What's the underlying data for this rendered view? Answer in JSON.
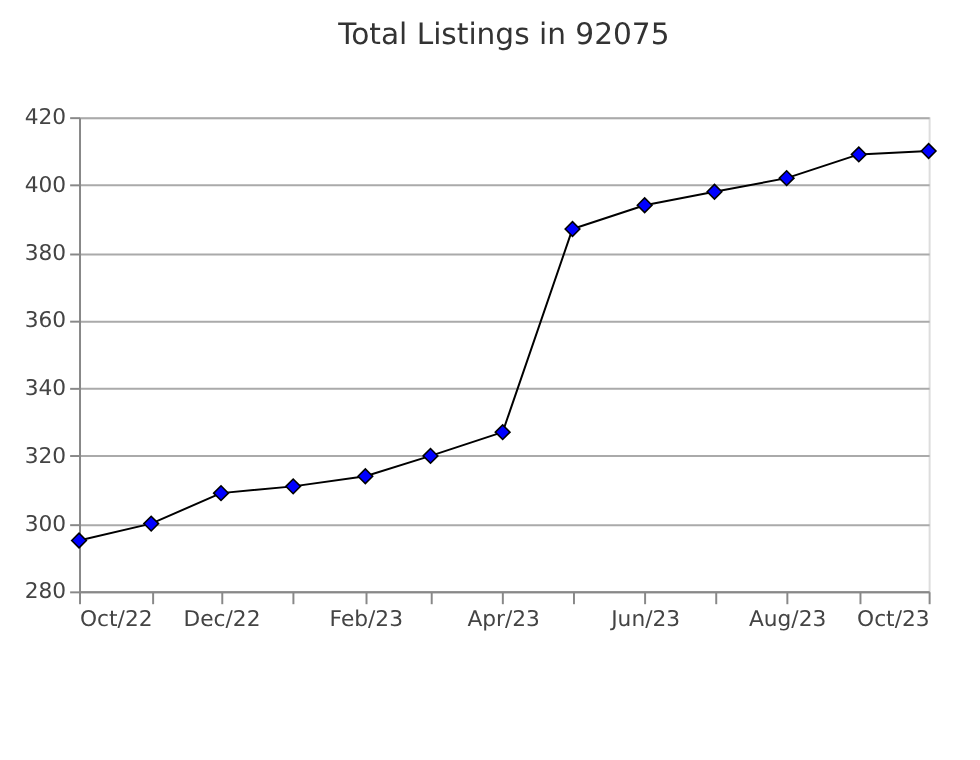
{
  "chart_data": {
    "type": "line",
    "title": "Total Listings in 92075",
    "x": [
      "2022-10",
      "2022-11",
      "2022-12",
      "2023-01",
      "2023-02",
      "2023-03",
      "2023-04",
      "2023-05",
      "2023-06",
      "2023-07",
      "2023-08",
      "2023-09",
      "2023-10"
    ],
    "series": [
      {
        "color": "#0000ff",
        "values": [
          295,
          300,
          309,
          311,
          314,
          320,
          327,
          387,
          394,
          398,
          402,
          409,
          410
        ]
      }
    ],
    "marker": "diamond",
    "line_style": "solid",
    "xlim": [
      "2022-10",
      "2023-10"
    ],
    "xticks": [
      {
        "value": "2022-10",
        "label": "Oct/22"
      },
      {
        "value": "2022-11",
        "label": null
      },
      {
        "value": "2022-12",
        "label": "Dec/22"
      },
      {
        "value": "2023-01",
        "label": null
      },
      {
        "value": "2023-02",
        "label": "Feb/23"
      },
      {
        "value": "2023-03",
        "label": null
      },
      {
        "value": "2023-04",
        "label": "Apr/23"
      },
      {
        "value": "2023-05",
        "label": null
      },
      {
        "value": "2023-06",
        "label": "Jun/23"
      },
      {
        "value": "2023-07",
        "label": null
      },
      {
        "value": "2023-08",
        "label": "Aug/23"
      },
      {
        "value": "2023-09",
        "label": null
      },
      {
        "value": "2023-10",
        "label": "Oct/23"
      }
    ],
    "ylim": [
      280,
      420
    ],
    "yticks": [
      280,
      300,
      320,
      340,
      360,
      380,
      400,
      420
    ],
    "grid": "y"
  }
}
